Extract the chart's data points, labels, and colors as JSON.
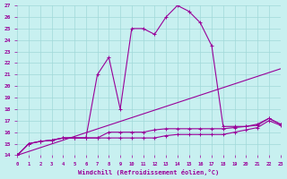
{
  "xlabel": "Windchill (Refroidissement éolien,°C)",
  "bg_color": "#c8f0f0",
  "line_color": "#990099",
  "xlim": [
    0,
    23
  ],
  "ylim": [
    14,
    27
  ],
  "xticks": [
    0,
    1,
    2,
    3,
    4,
    5,
    6,
    7,
    8,
    9,
    10,
    11,
    12,
    13,
    14,
    15,
    16,
    17,
    18,
    19,
    20,
    21,
    22,
    23
  ],
  "yticks": [
    14,
    15,
    16,
    17,
    18,
    19,
    20,
    21,
    22,
    23,
    24,
    25,
    26,
    27
  ],
  "lines": [
    {
      "x": [
        0,
        1,
        2,
        3,
        4,
        5,
        6,
        7,
        8,
        9,
        10,
        11,
        12,
        13,
        14,
        15,
        16,
        17,
        18,
        19,
        20,
        21,
        22,
        23
      ],
      "y": [
        14,
        15,
        15.2,
        15.3,
        15.5,
        15.5,
        15.5,
        21,
        22.5,
        18,
        25,
        25,
        24.5,
        26,
        27,
        26.5,
        25.5,
        23.5,
        16.5,
        16.5,
        16.5,
        16.7,
        17.2,
        16.7
      ],
      "marker": true
    },
    {
      "x": [
        0,
        23
      ],
      "y": [
        14,
        21.5
      ],
      "marker": false
    },
    {
      "x": [
        0,
        1,
        2,
        3,
        4,
        5,
        6,
        7,
        8,
        9,
        10,
        11,
        12,
        13,
        14,
        15,
        16,
        17,
        18,
        19,
        20,
        21,
        22,
        23
      ],
      "y": [
        14,
        15,
        15.2,
        15.3,
        15.5,
        15.5,
        15.5,
        15.5,
        16,
        16,
        16,
        16,
        16.2,
        16.3,
        16.3,
        16.3,
        16.3,
        16.3,
        16.3,
        16.4,
        16.5,
        16.6,
        17.2,
        16.7
      ],
      "marker": true
    },
    {
      "x": [
        0,
        1,
        2,
        3,
        4,
        5,
        6,
        7,
        8,
        9,
        10,
        11,
        12,
        13,
        14,
        15,
        16,
        17,
        18,
        19,
        20,
        21,
        22,
        23
      ],
      "y": [
        14,
        15,
        15.2,
        15.3,
        15.5,
        15.5,
        15.5,
        15.5,
        15.5,
        15.5,
        15.5,
        15.5,
        15.5,
        15.7,
        15.8,
        15.8,
        15.8,
        15.8,
        15.8,
        16.0,
        16.2,
        16.4,
        17.0,
        16.6
      ],
      "marker": true
    }
  ]
}
